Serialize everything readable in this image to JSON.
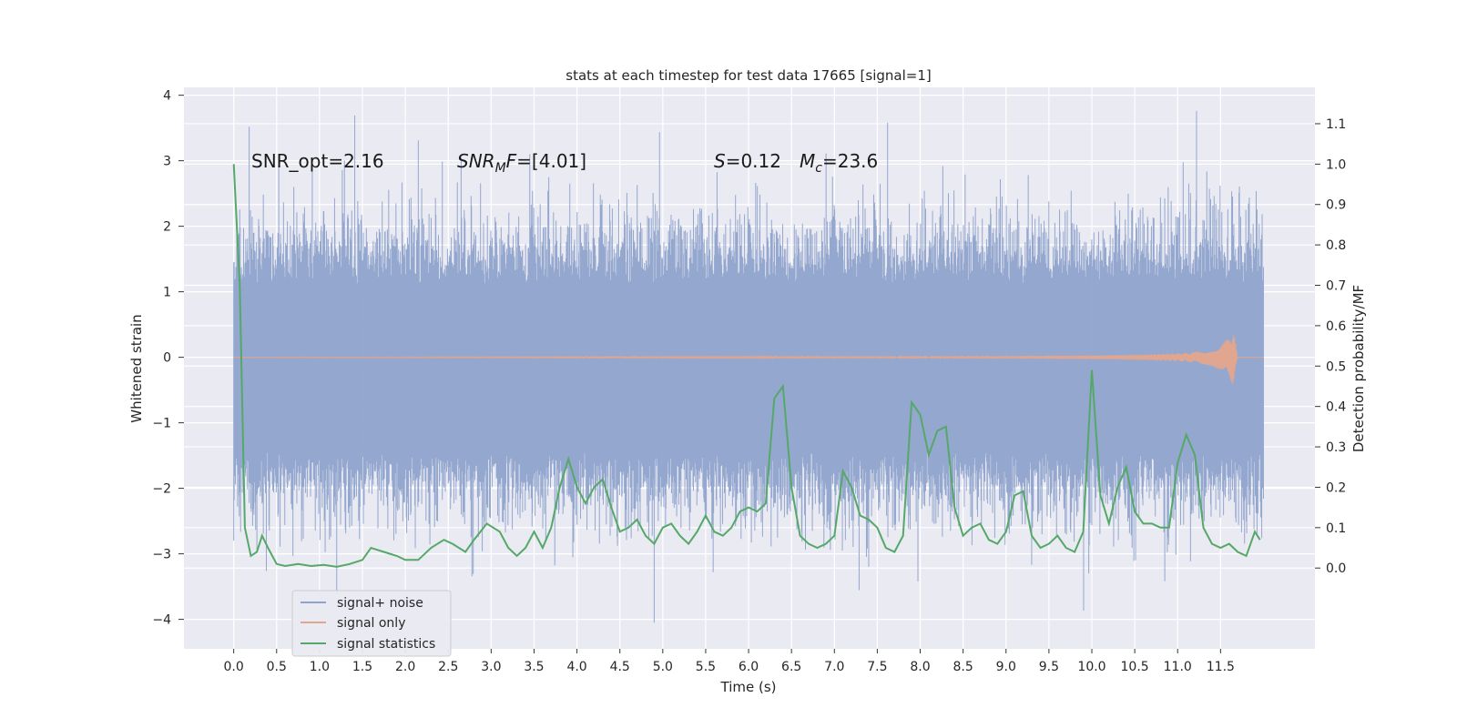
{
  "chart_data": {
    "type": "line",
    "title": "stats at each timestep for test data 17665 [signal=1]",
    "xlabel": "Time (s)",
    "ylabel": "Whitened strain",
    "ylabel_right": "Detection probability/MF",
    "xlim": [
      -0.58,
      12.6
    ],
    "ylim": [
      -4.45,
      4.12
    ],
    "ylim_right": [
      -0.2,
      1.19
    ],
    "x_ticks": [
      0.0,
      0.5,
      1.0,
      1.5,
      2.0,
      2.5,
      3.0,
      3.5,
      4.0,
      4.5,
      5.0,
      5.5,
      6.0,
      6.5,
      7.0,
      7.5,
      8.0,
      8.5,
      9.0,
      9.5,
      10.0,
      10.5,
      11.0,
      11.5
    ],
    "x_tick_labels": [
      "0.0",
      "0.5",
      "1.0",
      "1.5",
      "2.0",
      "2.5",
      "3.0",
      "3.5",
      "4.0",
      "4.5",
      "5.0",
      "5.5",
      "6.0",
      "6.5",
      "7.0",
      "7.5",
      "8.0",
      "8.5",
      "9.0",
      "9.5",
      "10.0",
      "10.5",
      "11.0",
      "11.5"
    ],
    "y_ticks": [
      4,
      3,
      2,
      1,
      0,
      -1,
      -2,
      -3,
      -4
    ],
    "y_tick_labels": [
      "4",
      "3",
      "2",
      "1",
      "0",
      "−1",
      "−2",
      "−3",
      "−4"
    ],
    "y_ticks_right": [
      1.1,
      1.0,
      0.9,
      0.8,
      0.7,
      0.6,
      0.5,
      0.4,
      0.3,
      0.2,
      0.1,
      0.0
    ],
    "y_tick_labels_right": [
      "1.1",
      "1.0",
      "0.9",
      "0.8",
      "0.7",
      "0.6",
      "0.5",
      "0.4",
      "0.3",
      "0.2",
      "0.1",
      "0.0"
    ],
    "grid": true,
    "legend_position": "bottom-left",
    "annotations": [
      "SNR_opt=2.16",
      "SNR_MF=[4.01]",
      "S=0.12",
      "M_c=23.6"
    ],
    "series": [
      {
        "name": "signal+ noise",
        "axis": "left",
        "color": "#8fa3cc",
        "t_range": [
          0.0,
          12.0
        ],
        "envelope_bulk": [
          -1.45,
          1.1
        ],
        "spike_max": [
          3.52,
          3.58,
          3.76
        ],
        "spike_min": [
          -3.62,
          -4.05,
          -3.42
        ]
      },
      {
        "name": "signal only",
        "axis": "left",
        "color": "#e0a68f",
        "description_values": {
          "t_end": 11.65,
          "amp_peak": 0.44
        },
        "x": [
          0.0,
          6.0,
          9.0,
          10.0,
          10.5,
          11.0,
          11.2,
          11.4,
          11.5,
          11.6,
          11.65,
          11.7
        ],
        "amplitude": [
          0.005,
          0.01,
          0.02,
          0.03,
          0.04,
          0.06,
          0.08,
          0.13,
          0.19,
          0.3,
          0.44,
          0.0
        ]
      },
      {
        "name": "signal statistics",
        "axis": "right",
        "color": "#55a868",
        "x": [
          0.0,
          0.07,
          0.13,
          0.2,
          0.27,
          0.33,
          0.4,
          0.5,
          0.6,
          0.75,
          0.9,
          1.05,
          1.2,
          1.35,
          1.5,
          1.6,
          1.75,
          1.9,
          2.0,
          2.15,
          2.3,
          2.45,
          2.55,
          2.7,
          2.8,
          2.95,
          3.1,
          3.2,
          3.3,
          3.4,
          3.5,
          3.6,
          3.7,
          3.8,
          3.9,
          4.0,
          4.1,
          4.2,
          4.3,
          4.4,
          4.5,
          4.6,
          4.7,
          4.8,
          4.9,
          5.0,
          5.1,
          5.2,
          5.3,
          5.4,
          5.5,
          5.6,
          5.7,
          5.8,
          5.9,
          6.0,
          6.1,
          6.2,
          6.3,
          6.4,
          6.5,
          6.6,
          6.7,
          6.8,
          6.9,
          7.0,
          7.1,
          7.2,
          7.3,
          7.4,
          7.5,
          7.6,
          7.7,
          7.8,
          7.9,
          8.0,
          8.1,
          8.2,
          8.3,
          8.4,
          8.5,
          8.6,
          8.7,
          8.8,
          8.9,
          9.0,
          9.1,
          9.2,
          9.3,
          9.4,
          9.5,
          9.6,
          9.7,
          9.8,
          9.9,
          10.0,
          10.1,
          10.2,
          10.3,
          10.4,
          10.5,
          10.6,
          10.7,
          10.8,
          10.9,
          11.0,
          11.1,
          11.2,
          11.3,
          11.4,
          11.5,
          11.6,
          11.7,
          11.8,
          11.9,
          11.96
        ],
        "values": [
          1.0,
          0.7,
          0.1,
          0.03,
          0.04,
          0.08,
          0.05,
          0.01,
          0.005,
          0.01,
          0.005,
          0.008,
          0.003,
          0.01,
          0.02,
          0.05,
          0.04,
          0.03,
          0.02,
          0.02,
          0.05,
          0.07,
          0.06,
          0.04,
          0.07,
          0.11,
          0.09,
          0.05,
          0.03,
          0.05,
          0.09,
          0.05,
          0.1,
          0.2,
          0.27,
          0.2,
          0.16,
          0.2,
          0.22,
          0.15,
          0.09,
          0.1,
          0.12,
          0.08,
          0.06,
          0.1,
          0.11,
          0.08,
          0.06,
          0.09,
          0.13,
          0.09,
          0.08,
          0.1,
          0.14,
          0.15,
          0.14,
          0.16,
          0.42,
          0.45,
          0.2,
          0.08,
          0.06,
          0.05,
          0.06,
          0.08,
          0.24,
          0.2,
          0.13,
          0.12,
          0.1,
          0.05,
          0.04,
          0.08,
          0.41,
          0.38,
          0.28,
          0.34,
          0.35,
          0.15,
          0.08,
          0.1,
          0.11,
          0.07,
          0.06,
          0.09,
          0.18,
          0.19,
          0.08,
          0.05,
          0.06,
          0.08,
          0.05,
          0.04,
          0.09,
          0.49,
          0.18,
          0.11,
          0.2,
          0.25,
          0.14,
          0.11,
          0.11,
          0.1,
          0.1,
          0.26,
          0.33,
          0.28,
          0.1,
          0.06,
          0.05,
          0.06,
          0.04,
          0.03,
          0.09,
          0.07
        ]
      }
    ]
  }
}
